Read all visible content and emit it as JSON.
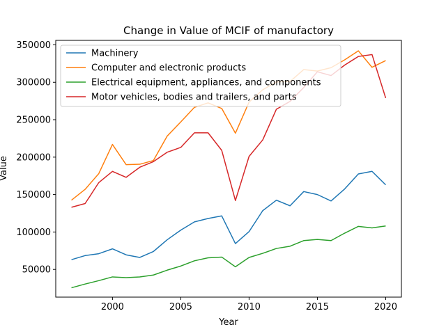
{
  "chart_data": {
    "type": "line",
    "title": "Change in Value of MCIF of manufactory",
    "xlabel": "Year",
    "ylabel": "Value",
    "xlim": [
      1995.85,
      2021.15
    ],
    "ylim": [
      13000,
      356000
    ],
    "xticks": [
      2000,
      2005,
      2010,
      2015,
      2020
    ],
    "yticks": [
      50000,
      100000,
      150000,
      200000,
      250000,
      300000,
      350000
    ],
    "grid": false,
    "legend_position": "top-left",
    "x": [
      1997,
      1998,
      1999,
      2000,
      2001,
      2002,
      2003,
      2004,
      2005,
      2006,
      2007,
      2008,
      2009,
      2010,
      2011,
      2012,
      2013,
      2014,
      2015,
      2016,
      2017,
      2018,
      2019,
      2020
    ],
    "series": [
      {
        "name": "Machinery",
        "color": "#1f77b4",
        "values": [
          63000,
          68500,
          71000,
          77500,
          69500,
          66000,
          74000,
          89500,
          102500,
          113500,
          118000,
          121500,
          84500,
          100500,
          128500,
          142500,
          135000,
          154000,
          150000,
          141500,
          157500,
          177500,
          181000,
          163000
        ]
      },
      {
        "name": "Computer and electronic products",
        "color": "#ff7f0e",
        "values": [
          142500,
          157000,
          178000,
          217000,
          190000,
          190500,
          195500,
          228000,
          247000,
          266500,
          272500,
          265000,
          232000,
          273500,
          290000,
          300500,
          301000,
          317000,
          315000,
          319500,
          330000,
          342000,
          320000,
          329000
        ]
      },
      {
        "name": "Electrical equipment, appliances, and components",
        "color": "#2ca02c",
        "values": [
          25500,
          30500,
          35000,
          40000,
          39000,
          40000,
          42500,
          49000,
          54500,
          61500,
          65500,
          66500,
          53500,
          66000,
          71500,
          78000,
          81000,
          88500,
          90000,
          88500,
          98500,
          107500,
          105500,
          108000
        ]
      },
      {
        "name": "Motor vehicles, bodies and trailers, and parts",
        "color": "#d62728",
        "values": [
          133000,
          138000,
          166000,
          181000,
          173000,
          186500,
          194000,
          206500,
          213000,
          232500,
          232500,
          209000,
          142000,
          201000,
          223000,
          264000,
          274500,
          293000,
          314000,
          309000,
          323000,
          334500,
          337000,
          279000
        ]
      }
    ]
  }
}
